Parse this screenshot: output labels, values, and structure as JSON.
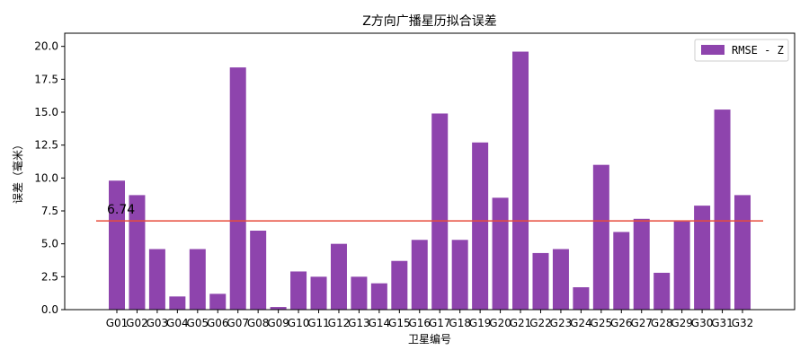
{
  "chart_data": {
    "type": "bar",
    "title": "Z方向广播星历拟合误差",
    "xlabel": "卫星编号",
    "ylabel": "误差（毫米）",
    "ylim": [
      0,
      21
    ],
    "yticks": [
      "0.0",
      "2.5",
      "5.0",
      "7.5",
      "10.0",
      "12.5",
      "15.0",
      "17.5",
      "20.0"
    ],
    "categories": [
      "G01",
      "G02",
      "G03",
      "G04",
      "G05",
      "G06",
      "G07",
      "G08",
      "G09",
      "G10",
      "G11",
      "G12",
      "G13",
      "G14",
      "G15",
      "G16",
      "G17",
      "G18",
      "G19",
      "G20",
      "G21",
      "G22",
      "G23",
      "G24",
      "G25",
      "G26",
      "G27",
      "G28",
      "G29",
      "G30",
      "G31",
      "G32"
    ],
    "series": [
      {
        "name": "RMSE - Z",
        "color": "#8e44ad",
        "values": [
          9.8,
          8.7,
          4.6,
          1.0,
          4.6,
          1.2,
          18.4,
          6.0,
          0.2,
          2.9,
          2.5,
          5.0,
          2.5,
          2.0,
          3.7,
          5.3,
          14.9,
          5.3,
          12.7,
          8.5,
          19.6,
          4.3,
          4.6,
          1.7,
          11.0,
          5.9,
          6.9,
          2.8,
          6.7,
          7.9,
          15.2,
          8.7
        ]
      }
    ],
    "reference_line": {
      "value": 6.74,
      "label": "6.74",
      "color": "#e74c3c"
    },
    "legend": {
      "position": "top-right"
    },
    "grid": false
  }
}
